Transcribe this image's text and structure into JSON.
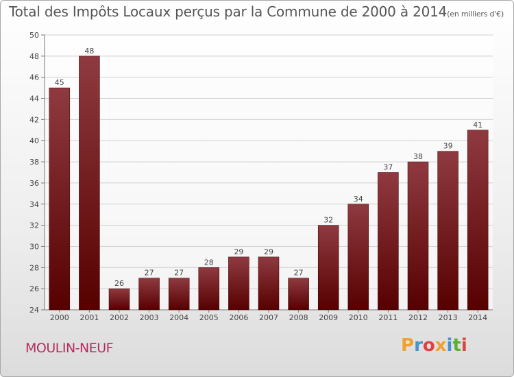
{
  "title": "Total des Impôts Locaux perçus par la Commune de 2000 à 2014",
  "unit": "(en milliers d'€)",
  "commune": "MOULIN-NEUF",
  "logo": {
    "text": "Proxiti",
    "colors": [
      "#f0a030",
      "#4a90d0",
      "#e04040",
      "#f0a030",
      "#4a90d0",
      "#5cb030",
      "#e04040"
    ]
  },
  "colors": {
    "bar_top": "#8f3a40",
    "bar_bottom": "#560000",
    "grid": "#cfcfcf",
    "axis": "#777777"
  },
  "chart_data": {
    "type": "bar",
    "title": "Total des Impôts Locaux perçus par la Commune de 2000 à 2014",
    "categories": [
      "2000",
      "2001",
      "2002",
      "2003",
      "2004",
      "2005",
      "2006",
      "2007",
      "2008",
      "2009",
      "2010",
      "2011",
      "2012",
      "2013",
      "2014"
    ],
    "values": [
      45,
      48,
      26,
      27,
      27,
      28,
      29,
      29,
      27,
      32,
      34,
      37,
      38,
      39,
      41
    ],
    "ylim": [
      24,
      50
    ],
    "yticks": [
      24,
      26,
      28,
      30,
      32,
      34,
      36,
      38,
      40,
      42,
      44,
      46,
      48,
      50
    ],
    "grid": true,
    "data_labels": true
  }
}
